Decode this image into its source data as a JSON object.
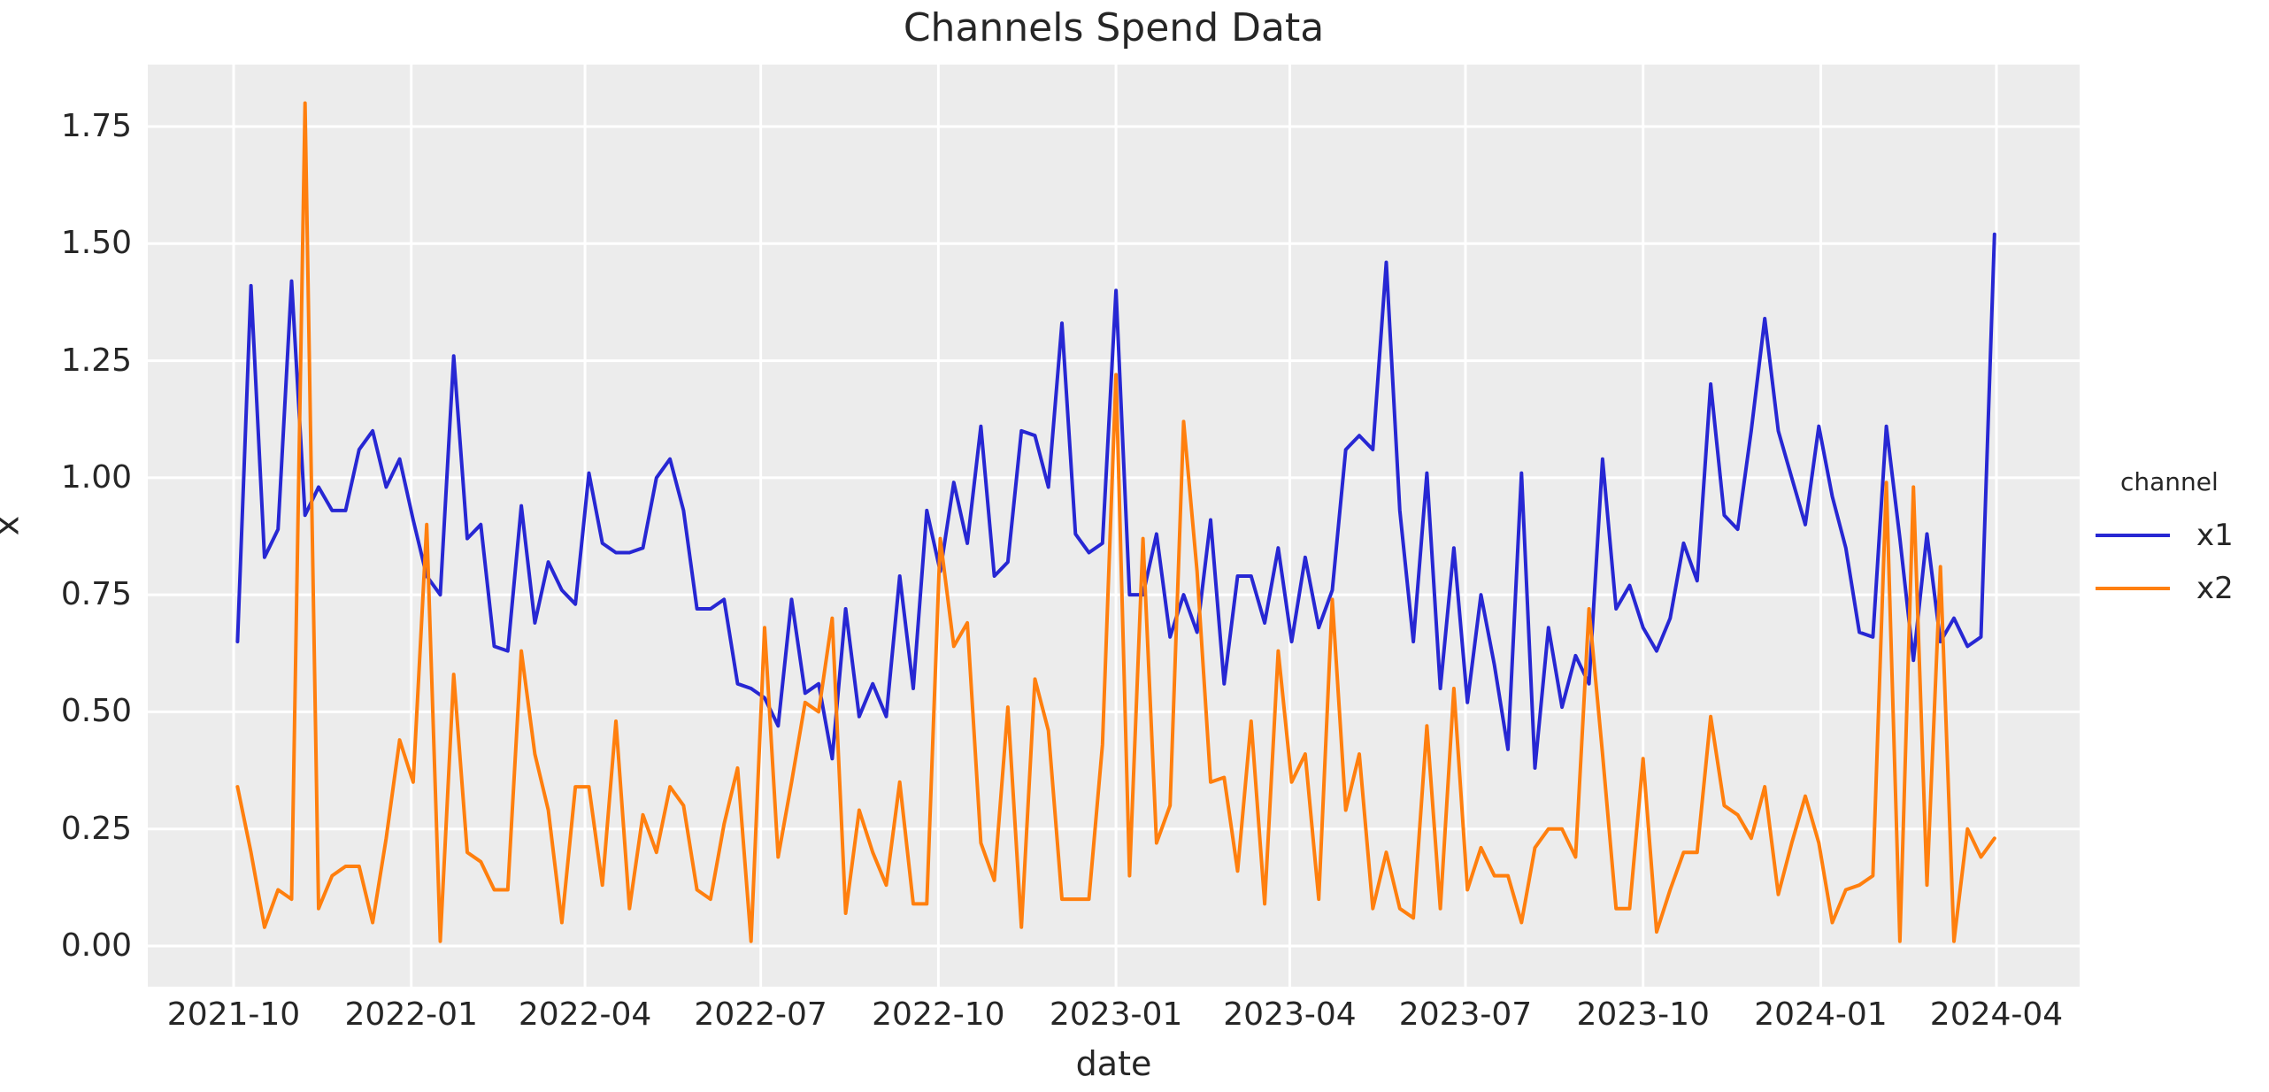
{
  "title": "Channels Spend Data",
  "xlabel": "date",
  "ylabel": "x",
  "legend": {
    "title": "channel",
    "entries": [
      {
        "label": "x1",
        "color": "#2727d3"
      },
      {
        "label": "x2",
        "color": "#ff7f0e"
      }
    ]
  },
  "axes": {
    "y_ticks": [
      "0.00",
      "0.25",
      "0.50",
      "0.75",
      "1.00",
      "1.25",
      "1.50",
      "1.75"
    ],
    "x_ticks": [
      {
        "date": "2021-10-01",
        "label": "2021-10"
      },
      {
        "date": "2022-01-01",
        "label": "2022-01"
      },
      {
        "date": "2022-04-01",
        "label": "2022-04"
      },
      {
        "date": "2022-07-01",
        "label": "2022-07"
      },
      {
        "date": "2022-10-01",
        "label": "2022-10"
      },
      {
        "date": "2023-01-01",
        "label": "2023-01"
      },
      {
        "date": "2023-04-01",
        "label": "2023-04"
      },
      {
        "date": "2023-07-01",
        "label": "2023-07"
      },
      {
        "date": "2023-10-01",
        "label": "2023-10"
      },
      {
        "date": "2024-01-01",
        "label": "2024-01"
      },
      {
        "date": "2024-04-01",
        "label": "2024-04"
      }
    ]
  },
  "style": {
    "plot_bg": "#ececec",
    "grid_color": "#ffffff",
    "text_color": "#262626"
  },
  "chart_data": {
    "type": "line",
    "title": "Channels Spend Data",
    "xlabel": "date",
    "ylabel": "x",
    "legend_title": "channel",
    "legend_position": "right-outside",
    "grid": true,
    "frequency": "weekly",
    "ylim": [
      -0.088,
      1.884
    ],
    "xlim": [
      "2021-08-17",
      "2024-05-15"
    ],
    "x": [
      "2021-10-03",
      "2021-10-10",
      "2021-10-17",
      "2021-10-24",
      "2021-10-31",
      "2021-11-07",
      "2021-11-14",
      "2021-11-21",
      "2021-11-28",
      "2021-12-05",
      "2021-12-12",
      "2021-12-19",
      "2021-12-26",
      "2022-01-02",
      "2022-01-09",
      "2022-01-16",
      "2022-01-23",
      "2022-01-30",
      "2022-02-06",
      "2022-02-13",
      "2022-02-20",
      "2022-02-27",
      "2022-03-06",
      "2022-03-13",
      "2022-03-20",
      "2022-03-27",
      "2022-04-03",
      "2022-04-10",
      "2022-04-17",
      "2022-04-24",
      "2022-05-01",
      "2022-05-08",
      "2022-05-15",
      "2022-05-22",
      "2022-05-29",
      "2022-06-05",
      "2022-06-12",
      "2022-06-19",
      "2022-06-26",
      "2022-07-03",
      "2022-07-10",
      "2022-07-17",
      "2022-07-24",
      "2022-07-31",
      "2022-08-07",
      "2022-08-14",
      "2022-08-21",
      "2022-08-28",
      "2022-09-04",
      "2022-09-11",
      "2022-09-18",
      "2022-09-25",
      "2022-10-02",
      "2022-10-09",
      "2022-10-16",
      "2022-10-23",
      "2022-10-30",
      "2022-11-06",
      "2022-11-13",
      "2022-11-20",
      "2022-11-27",
      "2022-12-04",
      "2022-12-11",
      "2022-12-18",
      "2022-12-25",
      "2023-01-01",
      "2023-01-08",
      "2023-01-15",
      "2023-01-22",
      "2023-01-29",
      "2023-02-05",
      "2023-02-12",
      "2023-02-19",
      "2023-02-26",
      "2023-03-05",
      "2023-03-12",
      "2023-03-19",
      "2023-03-26",
      "2023-04-02",
      "2023-04-09",
      "2023-04-16",
      "2023-04-23",
      "2023-04-30",
      "2023-05-07",
      "2023-05-14",
      "2023-05-21",
      "2023-05-28",
      "2023-06-04",
      "2023-06-11",
      "2023-06-18",
      "2023-06-25",
      "2023-07-02",
      "2023-07-09",
      "2023-07-16",
      "2023-07-23",
      "2023-07-30",
      "2023-08-06",
      "2023-08-13",
      "2023-08-20",
      "2023-08-27",
      "2023-09-03",
      "2023-09-10",
      "2023-09-17",
      "2023-09-24",
      "2023-10-01",
      "2023-10-08",
      "2023-10-15",
      "2023-10-22",
      "2023-10-29",
      "2023-11-05",
      "2023-11-12",
      "2023-11-19",
      "2023-11-26",
      "2023-12-03",
      "2023-12-10",
      "2023-12-17",
      "2023-12-24",
      "2023-12-31",
      "2024-01-07",
      "2024-01-14",
      "2024-01-21",
      "2024-01-28",
      "2024-02-04",
      "2024-02-11",
      "2024-02-18",
      "2024-02-25",
      "2024-03-03",
      "2024-03-10",
      "2024-03-17",
      "2024-03-24",
      "2024-03-31"
    ],
    "series": [
      {
        "name": "x1",
        "color": "#2727d3",
        "values": [
          0.65,
          1.41,
          0.83,
          0.89,
          1.42,
          0.92,
          0.98,
          0.93,
          0.93,
          1.06,
          1.1,
          0.98,
          1.04,
          0.91,
          0.79,
          0.75,
          1.26,
          0.87,
          0.9,
          0.64,
          0.63,
          0.94,
          0.69,
          0.82,
          0.76,
          0.73,
          1.01,
          0.86,
          0.84,
          0.84,
          0.85,
          1.0,
          1.04,
          0.93,
          0.72,
          0.72,
          0.74,
          0.56,
          0.55,
          0.53,
          0.47,
          0.74,
          0.54,
          0.56,
          0.4,
          0.72,
          0.49,
          0.56,
          0.49,
          0.79,
          0.55,
          0.93,
          0.8,
          0.99,
          0.86,
          1.11,
          0.79,
          0.82,
          1.1,
          1.09,
          0.98,
          1.33,
          0.88,
          0.84,
          0.86,
          1.4,
          0.75,
          0.75,
          0.88,
          0.66,
          0.75,
          0.67,
          0.91,
          0.56,
          0.79,
          0.79,
          0.69,
          0.85,
          0.65,
          0.83,
          0.68,
          0.76,
          1.06,
          1.09,
          1.06,
          1.46,
          0.93,
          0.65,
          1.01,
          0.55,
          0.85,
          0.52,
          0.75,
          0.6,
          0.42,
          1.01,
          0.38,
          0.68,
          0.51,
          0.62,
          0.56,
          1.04,
          0.72,
          0.77,
          0.68,
          0.63,
          0.7,
          0.86,
          0.78,
          1.2,
          0.92,
          0.89,
          1.1,
          1.34,
          1.1,
          1.0,
          0.9,
          1.11,
          0.96,
          0.85,
          0.67,
          0.66,
          1.11,
          0.87,
          0.61,
          0.88,
          0.65,
          0.7,
          0.64,
          0.66,
          1.52
        ]
      },
      {
        "name": "x2",
        "color": "#ff7f0e",
        "values": [
          0.34,
          0.2,
          0.04,
          0.12,
          0.1,
          1.8,
          0.08,
          0.15,
          0.17,
          0.17,
          0.05,
          0.23,
          0.44,
          0.35,
          0.9,
          0.01,
          0.58,
          0.2,
          0.18,
          0.12,
          0.12,
          0.63,
          0.41,
          0.29,
          0.05,
          0.34,
          0.34,
          0.13,
          0.48,
          0.08,
          0.28,
          0.2,
          0.34,
          0.3,
          0.12,
          0.1,
          0.26,
          0.38,
          0.01,
          0.68,
          0.19,
          0.35,
          0.52,
          0.5,
          0.7,
          0.07,
          0.29,
          0.2,
          0.13,
          0.35,
          0.09,
          0.09,
          0.87,
          0.64,
          0.69,
          0.22,
          0.14,
          0.51,
          0.04,
          0.57,
          0.46,
          0.1,
          0.1,
          0.1,
          0.43,
          1.22,
          0.15,
          0.87,
          0.22,
          0.3,
          1.12,
          0.8,
          0.35,
          0.36,
          0.16,
          0.48,
          0.09,
          0.63,
          0.35,
          0.41,
          0.1,
          0.74,
          0.29,
          0.41,
          0.08,
          0.2,
          0.08,
          0.06,
          0.47,
          0.08,
          0.55,
          0.12,
          0.21,
          0.15,
          0.15,
          0.05,
          0.21,
          0.25,
          0.25,
          0.19,
          0.72,
          0.41,
          0.08,
          0.08,
          0.4,
          0.03,
          0.12,
          0.2,
          0.2,
          0.49,
          0.3,
          0.28,
          0.23,
          0.34,
          0.11,
          0.22,
          0.32,
          0.22,
          0.05,
          0.12,
          0.13,
          0.15,
          0.99,
          0.01,
          0.98,
          0.13,
          0.81,
          0.01,
          0.25,
          0.19,
          0.23
        ]
      }
    ]
  }
}
